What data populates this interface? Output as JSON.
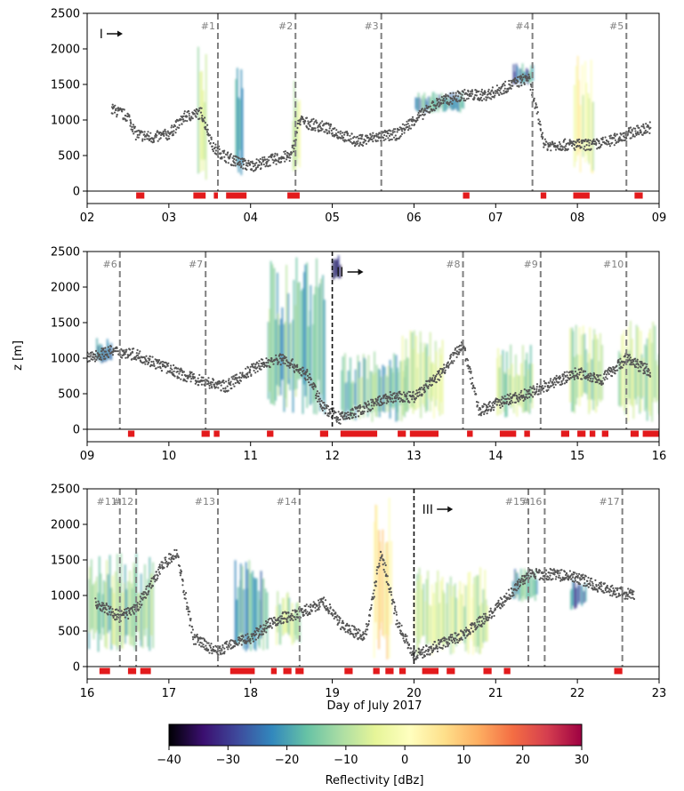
{
  "figure": {
    "xlabel": "Day of July 2017",
    "ylabel": "z [m]",
    "colorbar": {
      "label": "Reflectivity [dBz]",
      "ticks": [
        -40,
        -30,
        -20,
        -10,
        0,
        10,
        20,
        30
      ],
      "range": [
        -40,
        30
      ],
      "colormap": "spectral_r",
      "stops": [
        "#000004",
        "#3b0f70",
        "#3e4a9c",
        "#3288bd",
        "#66c2a5",
        "#abdda4",
        "#e6f598",
        "#ffffbf",
        "#fee08b",
        "#fdae61",
        "#f46d43",
        "#d53e4f",
        "#9e0142"
      ]
    },
    "colors": {
      "lidar_points": "#555555",
      "flag_markers": "#e31a1c",
      "event_line": "#808080",
      "phase_line": "#111111",
      "event_label": "#808080"
    }
  },
  "chart_data": [
    {
      "type": "scatter",
      "panel": 1,
      "xlim": [
        2,
        9
      ],
      "ylim": [
        0,
        2500
      ],
      "xticks": [
        2,
        3,
        4,
        5,
        6,
        7,
        8,
        9
      ],
      "xtick_labels": [
        "02",
        "03",
        "04",
        "05",
        "06",
        "07",
        "08",
        "09"
      ],
      "yticks": [
        0,
        500,
        1000,
        1500,
        2000,
        2500
      ],
      "phase_marker": {
        "label": "I",
        "x": 2.15
      },
      "events": [
        {
          "label": "#1",
          "x": 3.6
        },
        {
          "label": "#2",
          "x": 4.55
        },
        {
          "label": "#3",
          "x": 5.6
        },
        {
          "label": "#4",
          "x": 7.45
        },
        {
          "label": "#5",
          "x": 8.6
        }
      ],
      "phase_lines": [],
      "flags": [
        [
          2.6,
          2.7
        ],
        [
          3.3,
          3.45
        ],
        [
          3.55,
          3.6
        ],
        [
          3.7,
          3.95
        ],
        [
          4.45,
          4.6
        ],
        [
          6.6,
          6.68
        ],
        [
          7.55,
          7.62
        ],
        [
          7.95,
          8.15
        ],
        [
          8.7,
          8.8
        ]
      ],
      "cloud_base_track": [
        [
          2.3,
          1150
        ],
        [
          2.5,
          1050
        ],
        [
          2.6,
          800
        ],
        [
          2.8,
          750
        ],
        [
          3.0,
          800
        ],
        [
          3.2,
          1050
        ],
        [
          3.4,
          1100
        ],
        [
          3.55,
          600
        ],
        [
          3.75,
          450
        ],
        [
          4.0,
          350
        ],
        [
          4.3,
          450
        ],
        [
          4.5,
          500
        ],
        [
          4.6,
          1000
        ],
        [
          4.7,
          950
        ],
        [
          4.9,
          900
        ],
        [
          5.1,
          800
        ],
        [
          5.3,
          700
        ],
        [
          5.5,
          750
        ],
        [
          5.8,
          800
        ],
        [
          6.0,
          1000
        ],
        [
          6.3,
          1250
        ],
        [
          6.6,
          1350
        ],
        [
          6.9,
          1350
        ],
        [
          7.2,
          1500
        ],
        [
          7.4,
          1600
        ],
        [
          7.6,
          650
        ],
        [
          7.8,
          650
        ],
        [
          8.0,
          650
        ],
        [
          8.2,
          650
        ],
        [
          8.4,
          700
        ],
        [
          8.6,
          800
        ],
        [
          8.9,
          900
        ]
      ],
      "radar_echoes": [
        {
          "x": [
            3.35,
            3.45
          ],
          "z": [
            100,
            2100
          ],
          "dbz": -8
        },
        {
          "x": [
            3.8,
            3.9
          ],
          "z": [
            200,
            1800
          ],
          "dbz": -18
        },
        {
          "x": [
            4.5,
            4.6
          ],
          "z": [
            150,
            1600
          ],
          "dbz": -5
        },
        {
          "x": [
            6.0,
            6.6
          ],
          "z": [
            1100,
            1400
          ],
          "dbz": -20
        },
        {
          "x": [
            7.2,
            7.45
          ],
          "z": [
            1500,
            1800
          ],
          "dbz": -22
        },
        {
          "x": [
            7.95,
            8.2
          ],
          "z": [
            100,
            2000
          ],
          "dbz": -3
        }
      ]
    },
    {
      "type": "scatter",
      "panel": 2,
      "xlim": [
        9,
        16
      ],
      "ylim": [
        0,
        2500
      ],
      "xticks": [
        9,
        10,
        11,
        12,
        13,
        14,
        15,
        16
      ],
      "xtick_labels": [
        "09",
        "10",
        "11",
        "12",
        "13",
        "14",
        "15",
        "16"
      ],
      "yticks": [
        0,
        500,
        1000,
        1500,
        2000,
        2500
      ],
      "phase_marker": {
        "label": "II",
        "x": 12.05
      },
      "events": [
        {
          "label": "#6",
          "x": 9.4
        },
        {
          "label": "#7",
          "x": 10.45
        },
        {
          "label": "#8",
          "x": 13.6
        },
        {
          "label": "#9",
          "x": 14.55
        },
        {
          "label": "#10",
          "x": 15.6
        }
      ],
      "phase_lines": [
        12.0
      ],
      "flags": [
        [
          9.5,
          9.58
        ],
        [
          10.4,
          10.5
        ],
        [
          10.55,
          10.62
        ],
        [
          11.2,
          11.28
        ],
        [
          11.85,
          11.95
        ],
        [
          12.1,
          12.55
        ],
        [
          12.8,
          12.9
        ],
        [
          12.95,
          13.3
        ],
        [
          13.65,
          13.72
        ],
        [
          14.05,
          14.25
        ],
        [
          14.35,
          14.42
        ],
        [
          14.8,
          14.9
        ],
        [
          15.0,
          15.1
        ],
        [
          15.15,
          15.22
        ],
        [
          15.3,
          15.38
        ],
        [
          15.65,
          15.75
        ],
        [
          15.8,
          16.0
        ]
      ],
      "cloud_base_track": [
        [
          9.0,
          1000
        ],
        [
          9.3,
          1100
        ],
        [
          9.6,
          1050
        ],
        [
          9.9,
          900
        ],
        [
          10.2,
          750
        ],
        [
          10.5,
          650
        ],
        [
          10.7,
          600
        ],
        [
          11.1,
          900
        ],
        [
          11.4,
          1000
        ],
        [
          11.7,
          750
        ],
        [
          11.9,
          300
        ],
        [
          12.1,
          150
        ],
        [
          12.4,
          300
        ],
        [
          12.7,
          450
        ],
        [
          13.0,
          450
        ],
        [
          13.3,
          750
        ],
        [
          13.6,
          1200
        ],
        [
          13.8,
          250
        ],
        [
          14.1,
          400
        ],
        [
          14.4,
          500
        ],
        [
          14.7,
          650
        ],
        [
          15.0,
          800
        ],
        [
          15.3,
          700
        ],
        [
          15.6,
          1000
        ],
        [
          15.9,
          800
        ]
      ],
      "radar_echoes": [
        {
          "x": [
            9.1,
            9.3
          ],
          "z": [
            900,
            1300
          ],
          "dbz": -25
        },
        {
          "x": [
            11.2,
            11.9
          ],
          "z": [
            200,
            2450
          ],
          "dbz": -15
        },
        {
          "x": [
            12.0,
            12.1
          ],
          "z": [
            2100,
            2450
          ],
          "dbz": -35
        },
        {
          "x": [
            12.1,
            12.9
          ],
          "z": [
            100,
            1100
          ],
          "dbz": -15
        },
        {
          "x": [
            12.85,
            13.35
          ],
          "z": [
            150,
            1400
          ],
          "dbz": -8
        },
        {
          "x": [
            14.0,
            14.45
          ],
          "z": [
            150,
            1200
          ],
          "dbz": -10
        },
        {
          "x": [
            14.9,
            15.3
          ],
          "z": [
            200,
            1500
          ],
          "dbz": -10
        },
        {
          "x": [
            15.5,
            16.0
          ],
          "z": [
            100,
            1550
          ],
          "dbz": -8
        }
      ]
    },
    {
      "type": "scatter",
      "panel": 3,
      "xlim": [
        16,
        23
      ],
      "ylim": [
        0,
        2500
      ],
      "xticks": [
        16,
        17,
        18,
        19,
        20,
        21,
        22,
        23
      ],
      "xtick_labels": [
        "16",
        "17",
        "18",
        "19",
        "20",
        "21",
        "22",
        "23"
      ],
      "yticks": [
        0,
        500,
        1000,
        1500,
        2000,
        2500
      ],
      "phase_marker": {
        "label": "III",
        "x": 20.1
      },
      "events": [
        {
          "label": "#11",
          "x": 16.4
        },
        {
          "label": "#12",
          "x": 16.6
        },
        {
          "label": "#13",
          "x": 17.6
        },
        {
          "label": "#14",
          "x": 18.6
        },
        {
          "label": "#15",
          "x": 21.4
        },
        {
          "label": "#16",
          "x": 21.6
        },
        {
          "label": "#17",
          "x": 22.55
        }
      ],
      "phase_lines": [
        20.0
      ],
      "flags": [
        [
          16.15,
          16.28
        ],
        [
          16.5,
          16.6
        ],
        [
          16.65,
          16.78
        ],
        [
          17.75,
          18.05
        ],
        [
          18.25,
          18.32
        ],
        [
          18.4,
          18.5
        ],
        [
          18.55,
          18.65
        ],
        [
          19.15,
          19.25
        ],
        [
          19.5,
          19.58
        ],
        [
          19.65,
          19.75
        ],
        [
          19.82,
          19.9
        ],
        [
          20.1,
          20.3
        ],
        [
          20.4,
          20.5
        ],
        [
          20.85,
          20.95
        ],
        [
          21.1,
          21.18
        ],
        [
          22.45,
          22.55
        ]
      ],
      "cloud_base_track": [
        [
          16.1,
          900
        ],
        [
          16.4,
          700
        ],
        [
          16.6,
          800
        ],
        [
          16.9,
          1400
        ],
        [
          17.1,
          1600
        ],
        [
          17.3,
          400
        ],
        [
          17.6,
          200
        ],
        [
          17.8,
          350
        ],
        [
          18.0,
          400
        ],
        [
          18.3,
          650
        ],
        [
          18.6,
          750
        ],
        [
          18.9,
          900
        ],
        [
          19.1,
          600
        ],
        [
          19.4,
          400
        ],
        [
          19.6,
          1600
        ],
        [
          19.8,
          600
        ],
        [
          20.0,
          150
        ],
        [
          20.3,
          300
        ],
        [
          20.6,
          450
        ],
        [
          20.9,
          700
        ],
        [
          21.2,
          1050
        ],
        [
          21.4,
          1300
        ],
        [
          21.7,
          1300
        ],
        [
          22.0,
          1250
        ],
        [
          22.3,
          1100
        ],
        [
          22.7,
          1000
        ]
      ],
      "radar_echoes": [
        {
          "x": [
            16.0,
            16.8
          ],
          "z": [
            200,
            1600
          ],
          "dbz": -12
        },
        {
          "x": [
            17.8,
            18.2
          ],
          "z": [
            200,
            1500
          ],
          "dbz": -18
        },
        {
          "x": [
            18.3,
            18.6
          ],
          "z": [
            300,
            1100
          ],
          "dbz": -10
        },
        {
          "x": [
            19.5,
            19.72
          ],
          "z": [
            100,
            2450
          ],
          "dbz": 5
        },
        {
          "x": [
            20.0,
            20.9
          ],
          "z": [
            150,
            1400
          ],
          "dbz": -6
        },
        {
          "x": [
            21.2,
            21.5
          ],
          "z": [
            900,
            1400
          ],
          "dbz": -18
        },
        {
          "x": [
            21.9,
            22.1
          ],
          "z": [
            800,
            1250
          ],
          "dbz": -25
        }
      ]
    }
  ]
}
